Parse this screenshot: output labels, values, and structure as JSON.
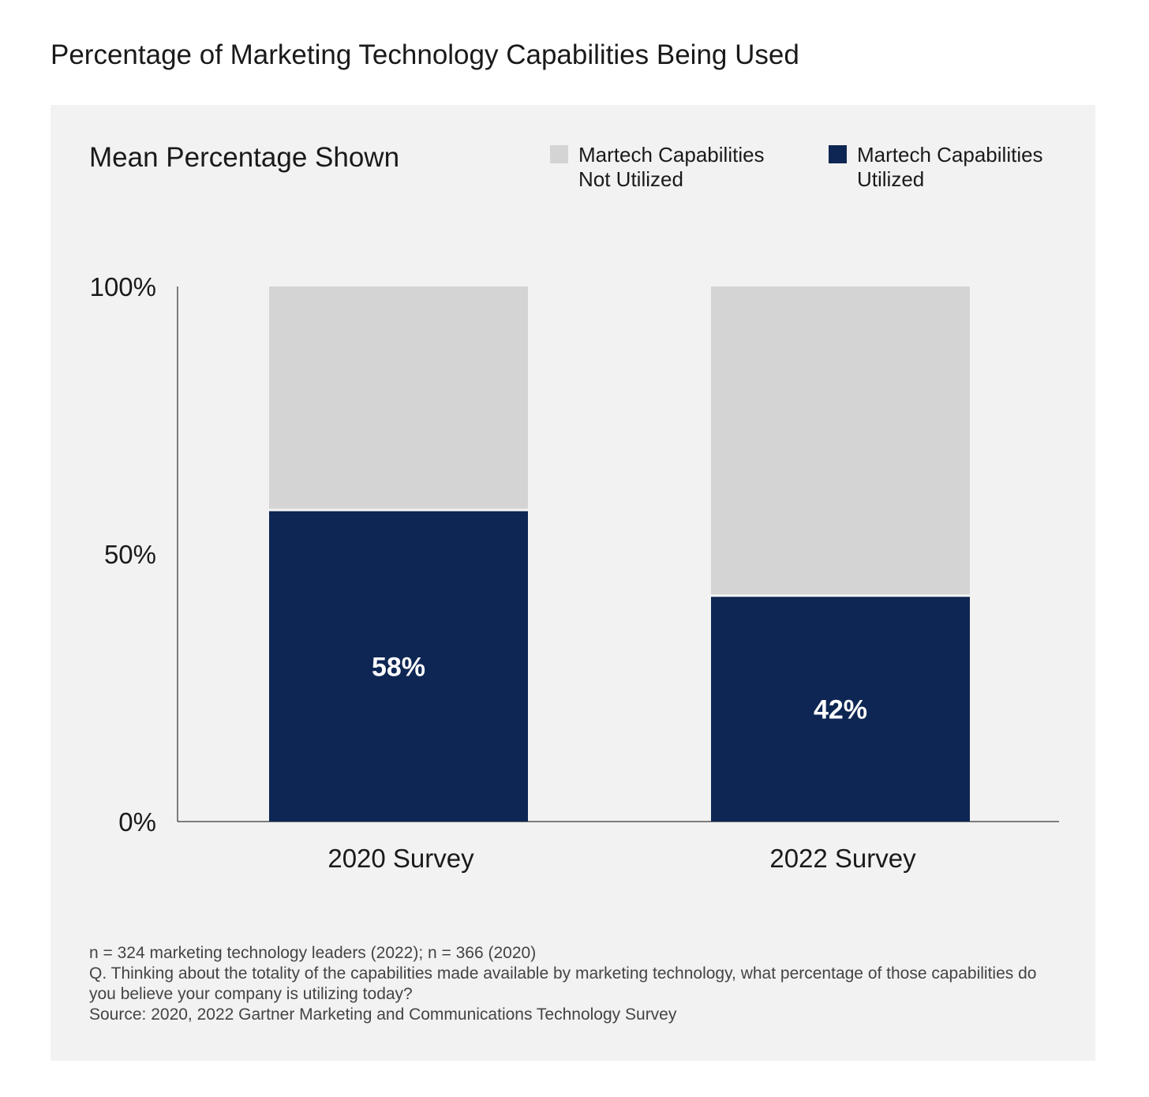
{
  "title": "Percentage of Marketing Technology Capabilities Being Used",
  "subtitle": "Mean Percentage Shown",
  "colors": {
    "utilized": "#0e2653",
    "not_utilized": "#d4d4d4",
    "panel": "#f2f2f2",
    "bar_label": "#ffffff"
  },
  "chart_data": {
    "type": "bar",
    "stacked": true,
    "categories": [
      "2020 Survey",
      "2022 Survey"
    ],
    "series": [
      {
        "name": "Martech Capabilities Utilized",
        "values": [
          58,
          42
        ],
        "labels": [
          "58%",
          "42%"
        ]
      },
      {
        "name": "Martech Capabilities Not Utilized",
        "values": [
          42,
          58
        ]
      }
    ],
    "legend": [
      {
        "label": "Martech Capabilities Not Utilized"
      },
      {
        "label": "Martech Capabilities Utilized"
      }
    ],
    "ylim": [
      0,
      100
    ],
    "yticks": [
      0,
      50,
      100
    ],
    "ytick_labels": [
      "0%",
      "50%",
      "100%"
    ],
    "xlabel": "",
    "ylabel": "",
    "grid": false,
    "legend_position": "top-right"
  },
  "footnotes": [
    "n = 324 marketing technology leaders (2022); n = 366 (2020)",
    "Q. Thinking about the totality of the capabilities made available by marketing technology, what percentage of those capabilities do you believe your company is utilizing today?",
    "Source: 2020, 2022 Gartner Marketing and Communications Technology Survey"
  ]
}
